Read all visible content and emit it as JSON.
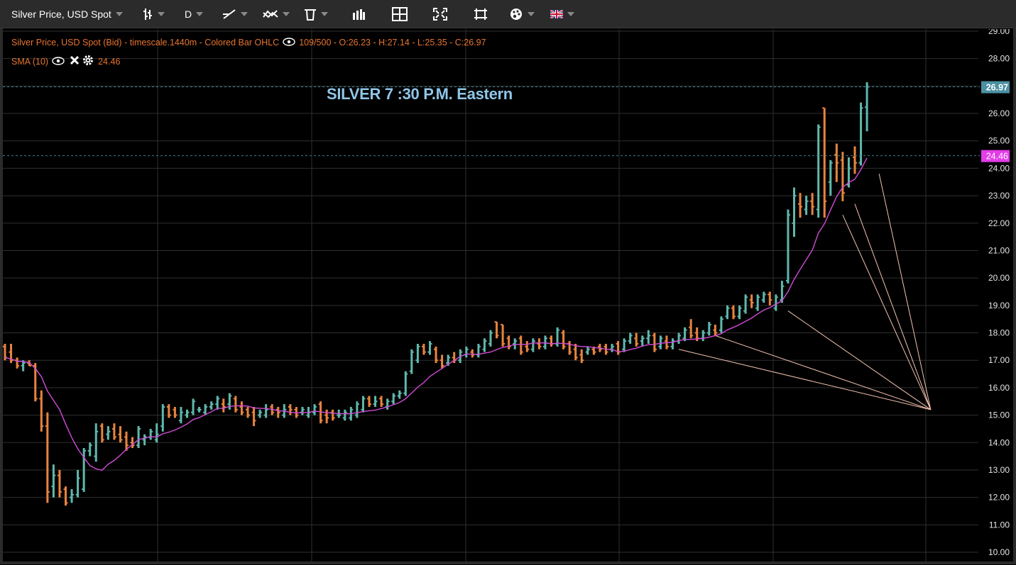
{
  "toolbar": {
    "symbol_label": "Silver Price, USD Spot",
    "timeframe_label": "D",
    "icons": [
      "bar-type-icon",
      "drawing-tool-icon",
      "indicator-icon",
      "trash-icon",
      "volume-icon",
      "layout-icon",
      "fullscreen-icon",
      "crop-icon",
      "theme-icon",
      "language-flag-icon"
    ]
  },
  "legend": {
    "main": "Silver Price, USD Spot (Bid) - timescale.1440m - Colored Bar OHLC",
    "ohlc": "109/500 - O:26.23 - H:27.14 - L:25.35 - C:26.97",
    "sma_label": "SMA (10)",
    "sma_value": "24.46"
  },
  "annotation": "SILVER 7 :30 P.M. Eastern",
  "price_tags": {
    "last": "26.97",
    "sma": "24.46"
  },
  "colors": {
    "up": "#5fb8ad",
    "down": "#e8843e",
    "sma": "#d24ad8",
    "sma_tag": "#e33ce8",
    "fan": "#f3c2b0",
    "grid": "#2f2f2f",
    "last_tag": "#4c8fa3"
  },
  "chart_data": {
    "type": "ohlc",
    "y_axis": {
      "min": 10,
      "max": 29,
      "ticks": [
        "10.00",
        "11.00",
        "12.00",
        "13.00",
        "14.00",
        "15.00",
        "16.00",
        "17.00",
        "18.00",
        "19.00",
        "20.00",
        "21.00",
        "22.00",
        "23.00",
        "24.00",
        "25.00",
        "26.00",
        "27.00",
        "28.00",
        "29.00"
      ]
    },
    "grid": true,
    "bars": [
      {
        "o": 17.5,
        "h": 17.6,
        "l": 17.0,
        "c": 17.1
      },
      {
        "o": 17.3,
        "h": 17.6,
        "l": 16.9,
        "c": 17.0
      },
      {
        "o": 17.0,
        "h": 17.1,
        "l": 16.7,
        "c": 16.8
      },
      {
        "o": 16.8,
        "h": 17.0,
        "l": 16.6,
        "c": 16.9
      },
      {
        "o": 16.9,
        "h": 17.0,
        "l": 16.8,
        "c": 16.8
      },
      {
        "o": 16.8,
        "h": 16.9,
        "l": 15.5,
        "c": 15.6
      },
      {
        "o": 15.6,
        "h": 15.9,
        "l": 14.4,
        "c": 14.6
      },
      {
        "o": 14.6,
        "h": 15.1,
        "l": 11.8,
        "c": 12.2
      },
      {
        "o": 12.4,
        "h": 13.2,
        "l": 12.0,
        "c": 12.8
      },
      {
        "o": 12.8,
        "h": 13.0,
        "l": 12.0,
        "c": 12.2
      },
      {
        "o": 12.3,
        "h": 12.4,
        "l": 11.7,
        "c": 11.8
      },
      {
        "o": 12.0,
        "h": 12.3,
        "l": 11.8,
        "c": 12.1
      },
      {
        "o": 12.1,
        "h": 13.0,
        "l": 12.0,
        "c": 12.7
      },
      {
        "o": 12.3,
        "h": 13.8,
        "l": 12.2,
        "c": 13.7
      },
      {
        "o": 13.7,
        "h": 14.0,
        "l": 13.5,
        "c": 13.9
      },
      {
        "o": 13.5,
        "h": 14.7,
        "l": 13.3,
        "c": 14.4
      },
      {
        "o": 14.6,
        "h": 14.7,
        "l": 14.0,
        "c": 14.1
      },
      {
        "o": 14.3,
        "h": 14.6,
        "l": 14.1,
        "c": 14.4
      },
      {
        "o": 14.5,
        "h": 14.7,
        "l": 14.1,
        "c": 14.2
      },
      {
        "o": 14.3,
        "h": 14.6,
        "l": 14.0,
        "c": 14.1
      },
      {
        "o": 14.2,
        "h": 14.4,
        "l": 13.7,
        "c": 13.9
      },
      {
        "o": 14.0,
        "h": 14.2,
        "l": 13.8,
        "c": 13.9
      },
      {
        "o": 13.9,
        "h": 14.6,
        "l": 13.8,
        "c": 14.5
      },
      {
        "o": 14.1,
        "h": 14.3,
        "l": 13.9,
        "c": 14.2
      },
      {
        "o": 14.2,
        "h": 14.5,
        "l": 14.1,
        "c": 14.4
      },
      {
        "o": 14.1,
        "h": 14.7,
        "l": 14.0,
        "c": 14.3
      },
      {
        "o": 14.6,
        "h": 15.4,
        "l": 14.4,
        "c": 15.3
      },
      {
        "o": 15.3,
        "h": 15.4,
        "l": 14.9,
        "c": 15.0
      },
      {
        "o": 15.2,
        "h": 15.3,
        "l": 14.9,
        "c": 15.0
      },
      {
        "o": 14.8,
        "h": 15.3,
        "l": 14.7,
        "c": 15.1
      },
      {
        "o": 15.0,
        "h": 15.2,
        "l": 14.9,
        "c": 15.1
      },
      {
        "o": 15.1,
        "h": 15.6,
        "l": 15.0,
        "c": 15.5
      },
      {
        "o": 15.2,
        "h": 15.3,
        "l": 15.1,
        "c": 15.2
      },
      {
        "o": 15.1,
        "h": 15.4,
        "l": 15.0,
        "c": 15.3
      },
      {
        "o": 15.3,
        "h": 15.5,
        "l": 15.2,
        "c": 15.4
      },
      {
        "o": 15.4,
        "h": 15.7,
        "l": 15.2,
        "c": 15.6
      },
      {
        "o": 15.4,
        "h": 15.6,
        "l": 15.1,
        "c": 15.3
      },
      {
        "o": 15.4,
        "h": 15.8,
        "l": 15.2,
        "c": 15.7
      },
      {
        "o": 15.6,
        "h": 15.7,
        "l": 15.1,
        "c": 15.2
      },
      {
        "o": 15.3,
        "h": 15.5,
        "l": 15.0,
        "c": 15.1
      },
      {
        "o": 15.2,
        "h": 15.3,
        "l": 14.9,
        "c": 15.0
      },
      {
        "o": 15.1,
        "h": 15.3,
        "l": 14.6,
        "c": 14.8
      },
      {
        "o": 15.0,
        "h": 15.2,
        "l": 14.9,
        "c": 15.1
      },
      {
        "o": 15.0,
        "h": 15.4,
        "l": 14.9,
        "c": 15.2
      },
      {
        "o": 15.3,
        "h": 15.4,
        "l": 15.0,
        "c": 15.1
      },
      {
        "o": 15.2,
        "h": 15.3,
        "l": 14.9,
        "c": 15.1
      },
      {
        "o": 15.0,
        "h": 15.4,
        "l": 14.9,
        "c": 15.2
      },
      {
        "o": 15.3,
        "h": 15.4,
        "l": 15.0,
        "c": 15.2
      },
      {
        "o": 15.2,
        "h": 15.3,
        "l": 14.9,
        "c": 15.0
      },
      {
        "o": 15.1,
        "h": 15.3,
        "l": 15.0,
        "c": 15.2
      },
      {
        "o": 15.0,
        "h": 15.3,
        "l": 14.9,
        "c": 15.1
      },
      {
        "o": 15.1,
        "h": 15.4,
        "l": 15.0,
        "c": 15.3
      },
      {
        "o": 15.4,
        "h": 15.5,
        "l": 14.7,
        "c": 14.8
      },
      {
        "o": 15.0,
        "h": 15.2,
        "l": 14.7,
        "c": 14.9
      },
      {
        "o": 15.1,
        "h": 15.2,
        "l": 14.8,
        "c": 14.9
      },
      {
        "o": 15.0,
        "h": 15.2,
        "l": 14.9,
        "c": 15.0
      },
      {
        "o": 14.9,
        "h": 15.2,
        "l": 14.8,
        "c": 15.1
      },
      {
        "o": 14.9,
        "h": 15.3,
        "l": 14.8,
        "c": 15.2
      },
      {
        "o": 15.0,
        "h": 15.5,
        "l": 14.9,
        "c": 15.4
      },
      {
        "o": 15.2,
        "h": 15.7,
        "l": 15.1,
        "c": 15.6
      },
      {
        "o": 15.6,
        "h": 15.7,
        "l": 15.3,
        "c": 15.4
      },
      {
        "o": 15.4,
        "h": 15.7,
        "l": 15.3,
        "c": 15.5
      },
      {
        "o": 15.6,
        "h": 15.7,
        "l": 15.3,
        "c": 15.4
      },
      {
        "o": 15.3,
        "h": 15.6,
        "l": 15.2,
        "c": 15.5
      },
      {
        "o": 15.5,
        "h": 15.8,
        "l": 15.4,
        "c": 15.7
      },
      {
        "o": 15.7,
        "h": 15.9,
        "l": 15.6,
        "c": 15.8
      },
      {
        "o": 15.8,
        "h": 16.6,
        "l": 15.7,
        "c": 16.5
      },
      {
        "o": 16.6,
        "h": 17.4,
        "l": 16.5,
        "c": 17.3
      },
      {
        "o": 17.0,
        "h": 17.6,
        "l": 16.9,
        "c": 17.5
      },
      {
        "o": 17.5,
        "h": 17.6,
        "l": 17.2,
        "c": 17.3
      },
      {
        "o": 17.3,
        "h": 17.7,
        "l": 17.2,
        "c": 17.6
      },
      {
        "o": 17.4,
        "h": 17.5,
        "l": 16.9,
        "c": 17.0
      },
      {
        "o": 17.0,
        "h": 17.2,
        "l": 16.7,
        "c": 16.8
      },
      {
        "o": 16.9,
        "h": 17.2,
        "l": 16.8,
        "c": 17.1
      },
      {
        "o": 17.1,
        "h": 17.3,
        "l": 16.9,
        "c": 17.0
      },
      {
        "o": 17.0,
        "h": 17.4,
        "l": 16.9,
        "c": 17.3
      },
      {
        "o": 17.2,
        "h": 17.5,
        "l": 17.1,
        "c": 17.4
      },
      {
        "o": 17.3,
        "h": 17.4,
        "l": 17.1,
        "c": 17.2
      },
      {
        "o": 17.2,
        "h": 17.6,
        "l": 17.1,
        "c": 17.5
      },
      {
        "o": 17.4,
        "h": 17.8,
        "l": 17.3,
        "c": 17.7
      },
      {
        "o": 17.6,
        "h": 18.1,
        "l": 17.5,
        "c": 18.0
      },
      {
        "o": 18.4,
        "h": 18.4,
        "l": 17.8,
        "c": 17.9
      },
      {
        "o": 18.3,
        "h": 18.3,
        "l": 17.5,
        "c": 17.6
      },
      {
        "o": 17.8,
        "h": 17.9,
        "l": 17.4,
        "c": 17.5
      },
      {
        "o": 17.6,
        "h": 17.8,
        "l": 17.4,
        "c": 17.7
      },
      {
        "o": 17.8,
        "h": 17.9,
        "l": 17.2,
        "c": 17.3
      },
      {
        "o": 17.5,
        "h": 17.7,
        "l": 17.3,
        "c": 17.4
      },
      {
        "o": 17.4,
        "h": 17.8,
        "l": 17.3,
        "c": 17.7
      },
      {
        "o": 17.6,
        "h": 17.8,
        "l": 17.4,
        "c": 17.5
      },
      {
        "o": 17.5,
        "h": 17.9,
        "l": 17.4,
        "c": 17.8
      },
      {
        "o": 17.8,
        "h": 17.9,
        "l": 17.5,
        "c": 17.6
      },
      {
        "o": 17.6,
        "h": 18.2,
        "l": 17.5,
        "c": 18.1
      },
      {
        "o": 18.0,
        "h": 18.1,
        "l": 17.4,
        "c": 17.5
      },
      {
        "o": 17.6,
        "h": 17.7,
        "l": 17.2,
        "c": 17.3
      },
      {
        "o": 17.4,
        "h": 17.6,
        "l": 17.0,
        "c": 17.1
      },
      {
        "o": 17.2,
        "h": 17.4,
        "l": 16.9,
        "c": 17.0
      },
      {
        "o": 17.3,
        "h": 17.5,
        "l": 17.2,
        "c": 17.4
      },
      {
        "o": 17.4,
        "h": 17.5,
        "l": 17.2,
        "c": 17.3
      },
      {
        "o": 17.5,
        "h": 17.6,
        "l": 17.3,
        "c": 17.4
      },
      {
        "o": 17.5,
        "h": 17.6,
        "l": 17.2,
        "c": 17.3
      },
      {
        "o": 17.4,
        "h": 17.6,
        "l": 17.3,
        "c": 17.5
      },
      {
        "o": 17.6,
        "h": 17.7,
        "l": 17.2,
        "c": 17.3
      },
      {
        "o": 17.4,
        "h": 17.8,
        "l": 17.3,
        "c": 17.7
      },
      {
        "o": 17.7,
        "h": 18.0,
        "l": 17.6,
        "c": 17.9
      },
      {
        "o": 17.8,
        "h": 18.0,
        "l": 17.5,
        "c": 17.6
      },
      {
        "o": 17.7,
        "h": 17.9,
        "l": 17.5,
        "c": 17.8
      },
      {
        "o": 17.8,
        "h": 18.1,
        "l": 17.6,
        "c": 17.9
      },
      {
        "o": 17.9,
        "h": 18.0,
        "l": 17.3,
        "c": 17.4
      },
      {
        "o": 17.5,
        "h": 17.9,
        "l": 17.4,
        "c": 17.8
      },
      {
        "o": 17.7,
        "h": 17.9,
        "l": 17.4,
        "c": 17.5
      },
      {
        "o": 17.5,
        "h": 17.8,
        "l": 17.4,
        "c": 17.7
      },
      {
        "o": 17.7,
        "h": 18.0,
        "l": 17.6,
        "c": 17.9
      },
      {
        "o": 17.8,
        "h": 18.2,
        "l": 17.7,
        "c": 18.1
      },
      {
        "o": 18.2,
        "h": 18.5,
        "l": 17.8,
        "c": 17.9
      },
      {
        "o": 18.0,
        "h": 18.2,
        "l": 17.7,
        "c": 17.8
      },
      {
        "o": 17.8,
        "h": 18.1,
        "l": 17.7,
        "c": 18.0
      },
      {
        "o": 18.0,
        "h": 18.4,
        "l": 17.9,
        "c": 18.3
      },
      {
        "o": 18.1,
        "h": 18.3,
        "l": 17.9,
        "c": 18.0
      },
      {
        "o": 18.1,
        "h": 18.6,
        "l": 18.0,
        "c": 18.5
      },
      {
        "o": 18.6,
        "h": 19.0,
        "l": 18.5,
        "c": 18.9
      },
      {
        "o": 18.9,
        "h": 19.0,
        "l": 18.5,
        "c": 18.6
      },
      {
        "o": 18.6,
        "h": 19.0,
        "l": 18.5,
        "c": 18.9
      },
      {
        "o": 18.8,
        "h": 19.4,
        "l": 18.7,
        "c": 19.3
      },
      {
        "o": 19.2,
        "h": 19.4,
        "l": 18.9,
        "c": 19.1
      },
      {
        "o": 18.9,
        "h": 19.4,
        "l": 18.8,
        "c": 19.3
      },
      {
        "o": 19.2,
        "h": 19.5,
        "l": 19.1,
        "c": 19.4
      },
      {
        "o": 19.4,
        "h": 19.5,
        "l": 19.0,
        "c": 19.2
      },
      {
        "o": 18.9,
        "h": 19.4,
        "l": 18.8,
        "c": 19.3
      },
      {
        "o": 19.2,
        "h": 19.9,
        "l": 19.1,
        "c": 19.7
      },
      {
        "o": 19.9,
        "h": 22.5,
        "l": 19.8,
        "c": 22.3
      },
      {
        "o": 22.0,
        "h": 23.3,
        "l": 21.5,
        "c": 23.0
      },
      {
        "o": 22.7,
        "h": 23.1,
        "l": 22.2,
        "c": 22.6
      },
      {
        "o": 22.5,
        "h": 23.0,
        "l": 22.3,
        "c": 22.8
      },
      {
        "o": 22.8,
        "h": 23.1,
        "l": 22.3,
        "c": 22.6
      },
      {
        "o": 22.5,
        "h": 25.6,
        "l": 22.2,
        "c": 25.5
      },
      {
        "o": 26.2,
        "h": 26.2,
        "l": 22.2,
        "c": 22.8
      },
      {
        "o": 23.5,
        "h": 24.3,
        "l": 23.0,
        "c": 24.2
      },
      {
        "o": 24.5,
        "h": 24.9,
        "l": 23.5,
        "c": 24.2
      },
      {
        "o": 24.3,
        "h": 24.6,
        "l": 22.8,
        "c": 23.1
      },
      {
        "o": 23.4,
        "h": 24.4,
        "l": 23.3,
        "c": 24.0
      },
      {
        "o": 24.4,
        "h": 24.8,
        "l": 23.8,
        "c": 24.2
      },
      {
        "o": 24.2,
        "h": 26.4,
        "l": 24.1,
        "c": 26.2
      },
      {
        "o": 26.23,
        "h": 27.14,
        "l": 25.35,
        "c": 26.97
      }
    ],
    "sma_period": 10
  }
}
